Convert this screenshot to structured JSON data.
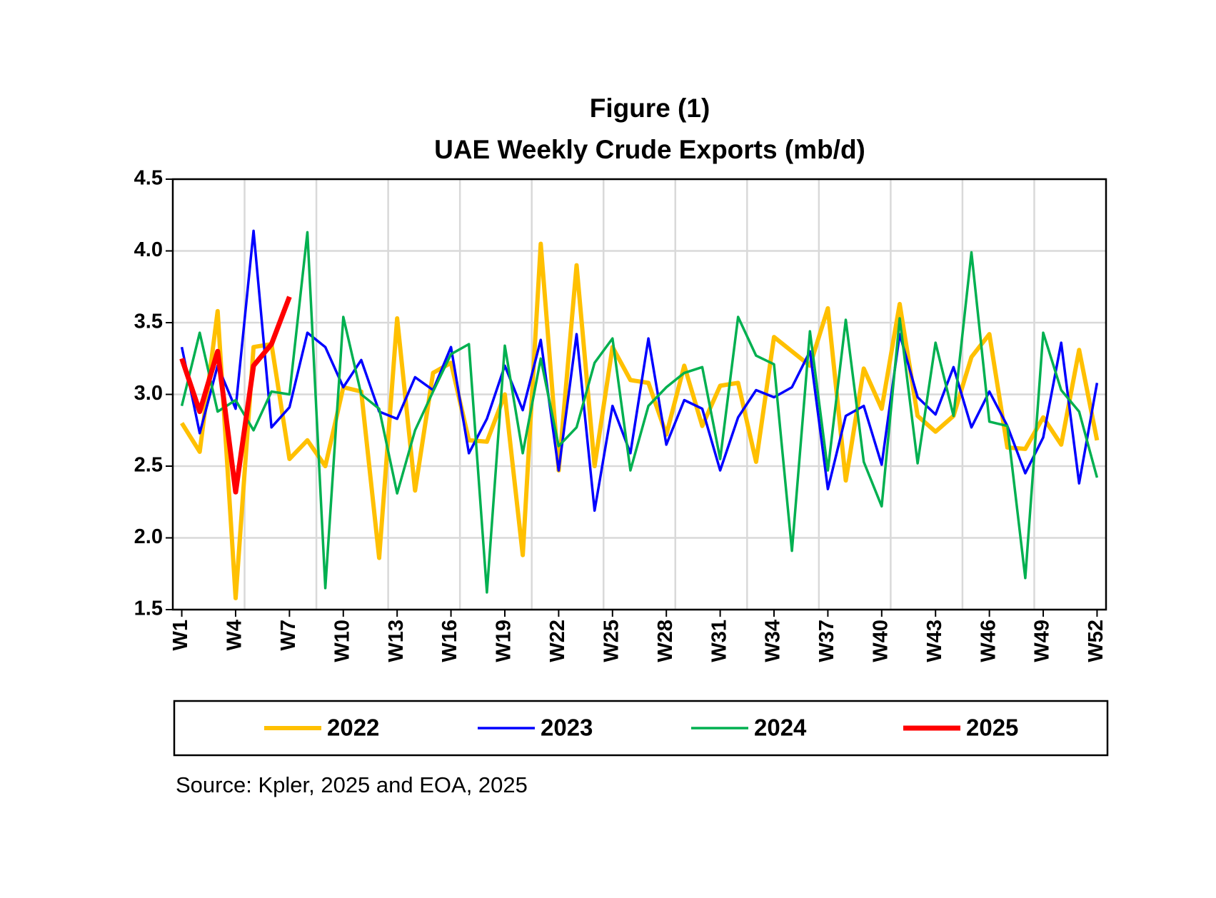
{
  "chart_data": {
    "type": "line",
    "title": "Figure (1)",
    "subtitle": "UAE Weekly Crude Exports (mb/d)",
    "source": "Source: Kpler, 2025 and EOA, 2025",
    "categories": [
      "W1",
      null,
      null,
      "W4",
      null,
      null,
      "W7",
      null,
      null,
      "W10",
      null,
      null,
      "W13",
      null,
      null,
      "W16",
      null,
      null,
      "W19",
      null,
      null,
      "W22",
      null,
      null,
      "W25",
      null,
      null,
      "W28",
      null,
      null,
      "W31",
      null,
      null,
      "W34",
      null,
      null,
      "W37",
      null,
      null,
      "W40",
      null,
      null,
      "W43",
      null,
      null,
      "W46",
      null,
      null,
      "W49",
      null,
      null,
      "W52"
    ],
    "ylim": [
      1.5,
      4.5
    ],
    "yticks": [
      1.5,
      {
        "value": 2,
        "label": "2.0"
      },
      2.5,
      {
        "value": 3,
        "label": "3.0"
      },
      3.5,
      {
        "value": 4,
        "label": "4.0"
      },
      4.5
    ],
    "grid": true,
    "legend": "bottom",
    "series": [
      {
        "name": "2022",
        "color": "#FFC000",
        "values": [
          2.8,
          2.6,
          3.58,
          1.58,
          3.33,
          3.35,
          2.55,
          2.68,
          2.5,
          3.05,
          3.02,
          1.86,
          3.53,
          2.33,
          3.15,
          3.22,
          2.68,
          2.67,
          3.0,
          1.88,
          4.05,
          2.47,
          3.9,
          2.5,
          3.33,
          3.1,
          3.08,
          2.72,
          3.2,
          2.78,
          3.06,
          3.08,
          2.53,
          3.4,
          3.3,
          3.2,
          3.6,
          2.4,
          3.18,
          2.9,
          3.63,
          2.85,
          2.74,
          2.85,
          3.26,
          3.42,
          2.63,
          2.62,
          2.84,
          2.65,
          3.31,
          2.68
        ]
      },
      {
        "name": "2023",
        "color": "#0000FF",
        "values": [
          3.33,
          2.73,
          3.2,
          2.9,
          4.14,
          2.77,
          2.91,
          3.43,
          3.33,
          3.05,
          3.24,
          2.88,
          2.83,
          3.12,
          3.03,
          3.33,
          2.59,
          2.83,
          3.2,
          2.89,
          3.38,
          2.47,
          3.42,
          2.19,
          2.92,
          2.59,
          3.39,
          2.65,
          2.96,
          2.9,
          2.47,
          2.84,
          3.03,
          2.98,
          3.05,
          3.3,
          2.34,
          2.85,
          2.92,
          2.51,
          3.42,
          2.98,
          2.86,
          3.19,
          2.77,
          3.02,
          2.78,
          2.45,
          2.7,
          3.36,
          2.38,
          3.08
        ]
      },
      {
        "name": "2024",
        "color": "#00B050",
        "values": [
          2.92,
          3.43,
          2.88,
          2.96,
          2.75,
          3.02,
          3.0,
          4.13,
          1.65,
          3.54,
          3.0,
          2.9,
          2.31,
          2.75,
          3.02,
          3.28,
          3.35,
          1.62,
          3.34,
          2.59,
          3.25,
          2.64,
          2.77,
          3.22,
          3.39,
          2.47,
          2.92,
          3.05,
          3.15,
          3.19,
          2.55,
          3.54,
          3.27,
          3.21,
          1.91,
          3.44,
          2.47,
          3.52,
          2.53,
          2.22,
          3.53,
          2.52,
          3.36,
          2.85,
          3.99,
          2.81,
          2.78,
          1.72,
          3.43,
          3.03,
          2.88,
          2.42
        ]
      },
      {
        "name": "2025",
        "color": "#FF0000",
        "values": [
          3.25,
          2.88,
          3.3,
          2.32,
          3.2,
          3.35,
          3.68,
          null,
          null,
          null,
          null,
          null,
          null,
          null,
          null,
          null,
          null,
          null,
          null,
          null,
          null,
          null,
          null,
          null,
          null,
          null,
          null,
          null,
          null,
          null,
          null,
          null,
          null,
          null,
          null,
          null,
          null,
          null,
          null,
          null,
          null,
          null,
          null,
          null,
          null,
          null,
          null,
          null,
          null,
          null,
          null,
          null
        ]
      }
    ]
  }
}
